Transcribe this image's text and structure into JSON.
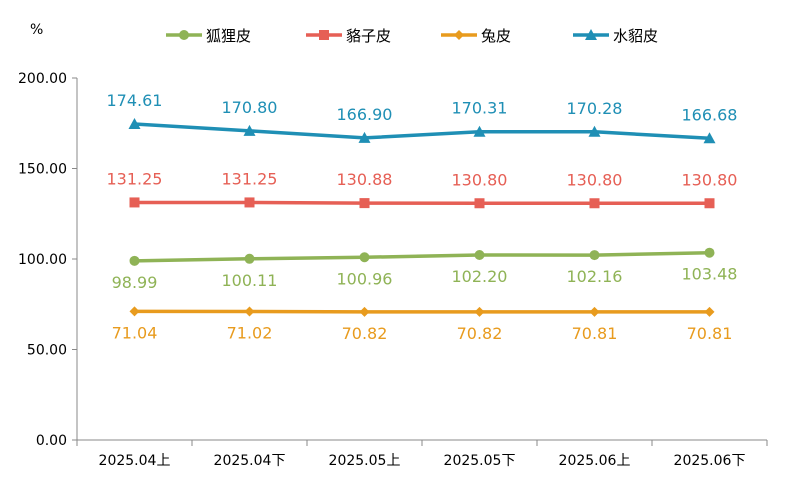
{
  "chart_data": {
    "type": "line",
    "ylabel": "%",
    "ylim": [
      0,
      200
    ],
    "yticks": [
      "0.00",
      "50.00",
      "100.00",
      "150.00",
      "200.00"
    ],
    "grid": false,
    "legend_position": "top",
    "categories": [
      "2025.04上",
      "2025.04下",
      "2025.05上",
      "2025.05下",
      "2025.06上",
      "2025.06下"
    ],
    "series": [
      {
        "name": "狐狸皮",
        "color": "#8fb356",
        "marker": "circle",
        "values": [
          98.99,
          100.11,
          100.96,
          102.2,
          102.16,
          103.48
        ],
        "labels": [
          "98.99",
          "100.11",
          "100.96",
          "102.20",
          "102.16",
          "103.48"
        ],
        "label_position": "below"
      },
      {
        "name": "貉子皮",
        "color": "#e65f55",
        "marker": "square",
        "values": [
          131.25,
          131.25,
          130.88,
          130.8,
          130.8,
          130.8
        ],
        "labels": [
          "131.25",
          "131.25",
          "130.88",
          "130.80",
          "130.80",
          "130.80"
        ],
        "label_position": "above"
      },
      {
        "name": "兔皮",
        "color": "#e89b1e",
        "marker": "diamond",
        "values": [
          71.04,
          71.02,
          70.82,
          70.82,
          70.81,
          70.81
        ],
        "labels": [
          "71.04",
          "71.02",
          "70.82",
          "70.82",
          "70.81",
          "70.81"
        ],
        "label_position": "below"
      },
      {
        "name": "水貂皮",
        "color": "#1f8fb5",
        "marker": "triangle",
        "values": [
          174.61,
          170.8,
          166.9,
          170.31,
          170.28,
          166.68
        ],
        "labels": [
          "174.61",
          "170.80",
          "166.90",
          "170.31",
          "170.28",
          "166.68"
        ],
        "label_position": "above"
      }
    ]
  }
}
